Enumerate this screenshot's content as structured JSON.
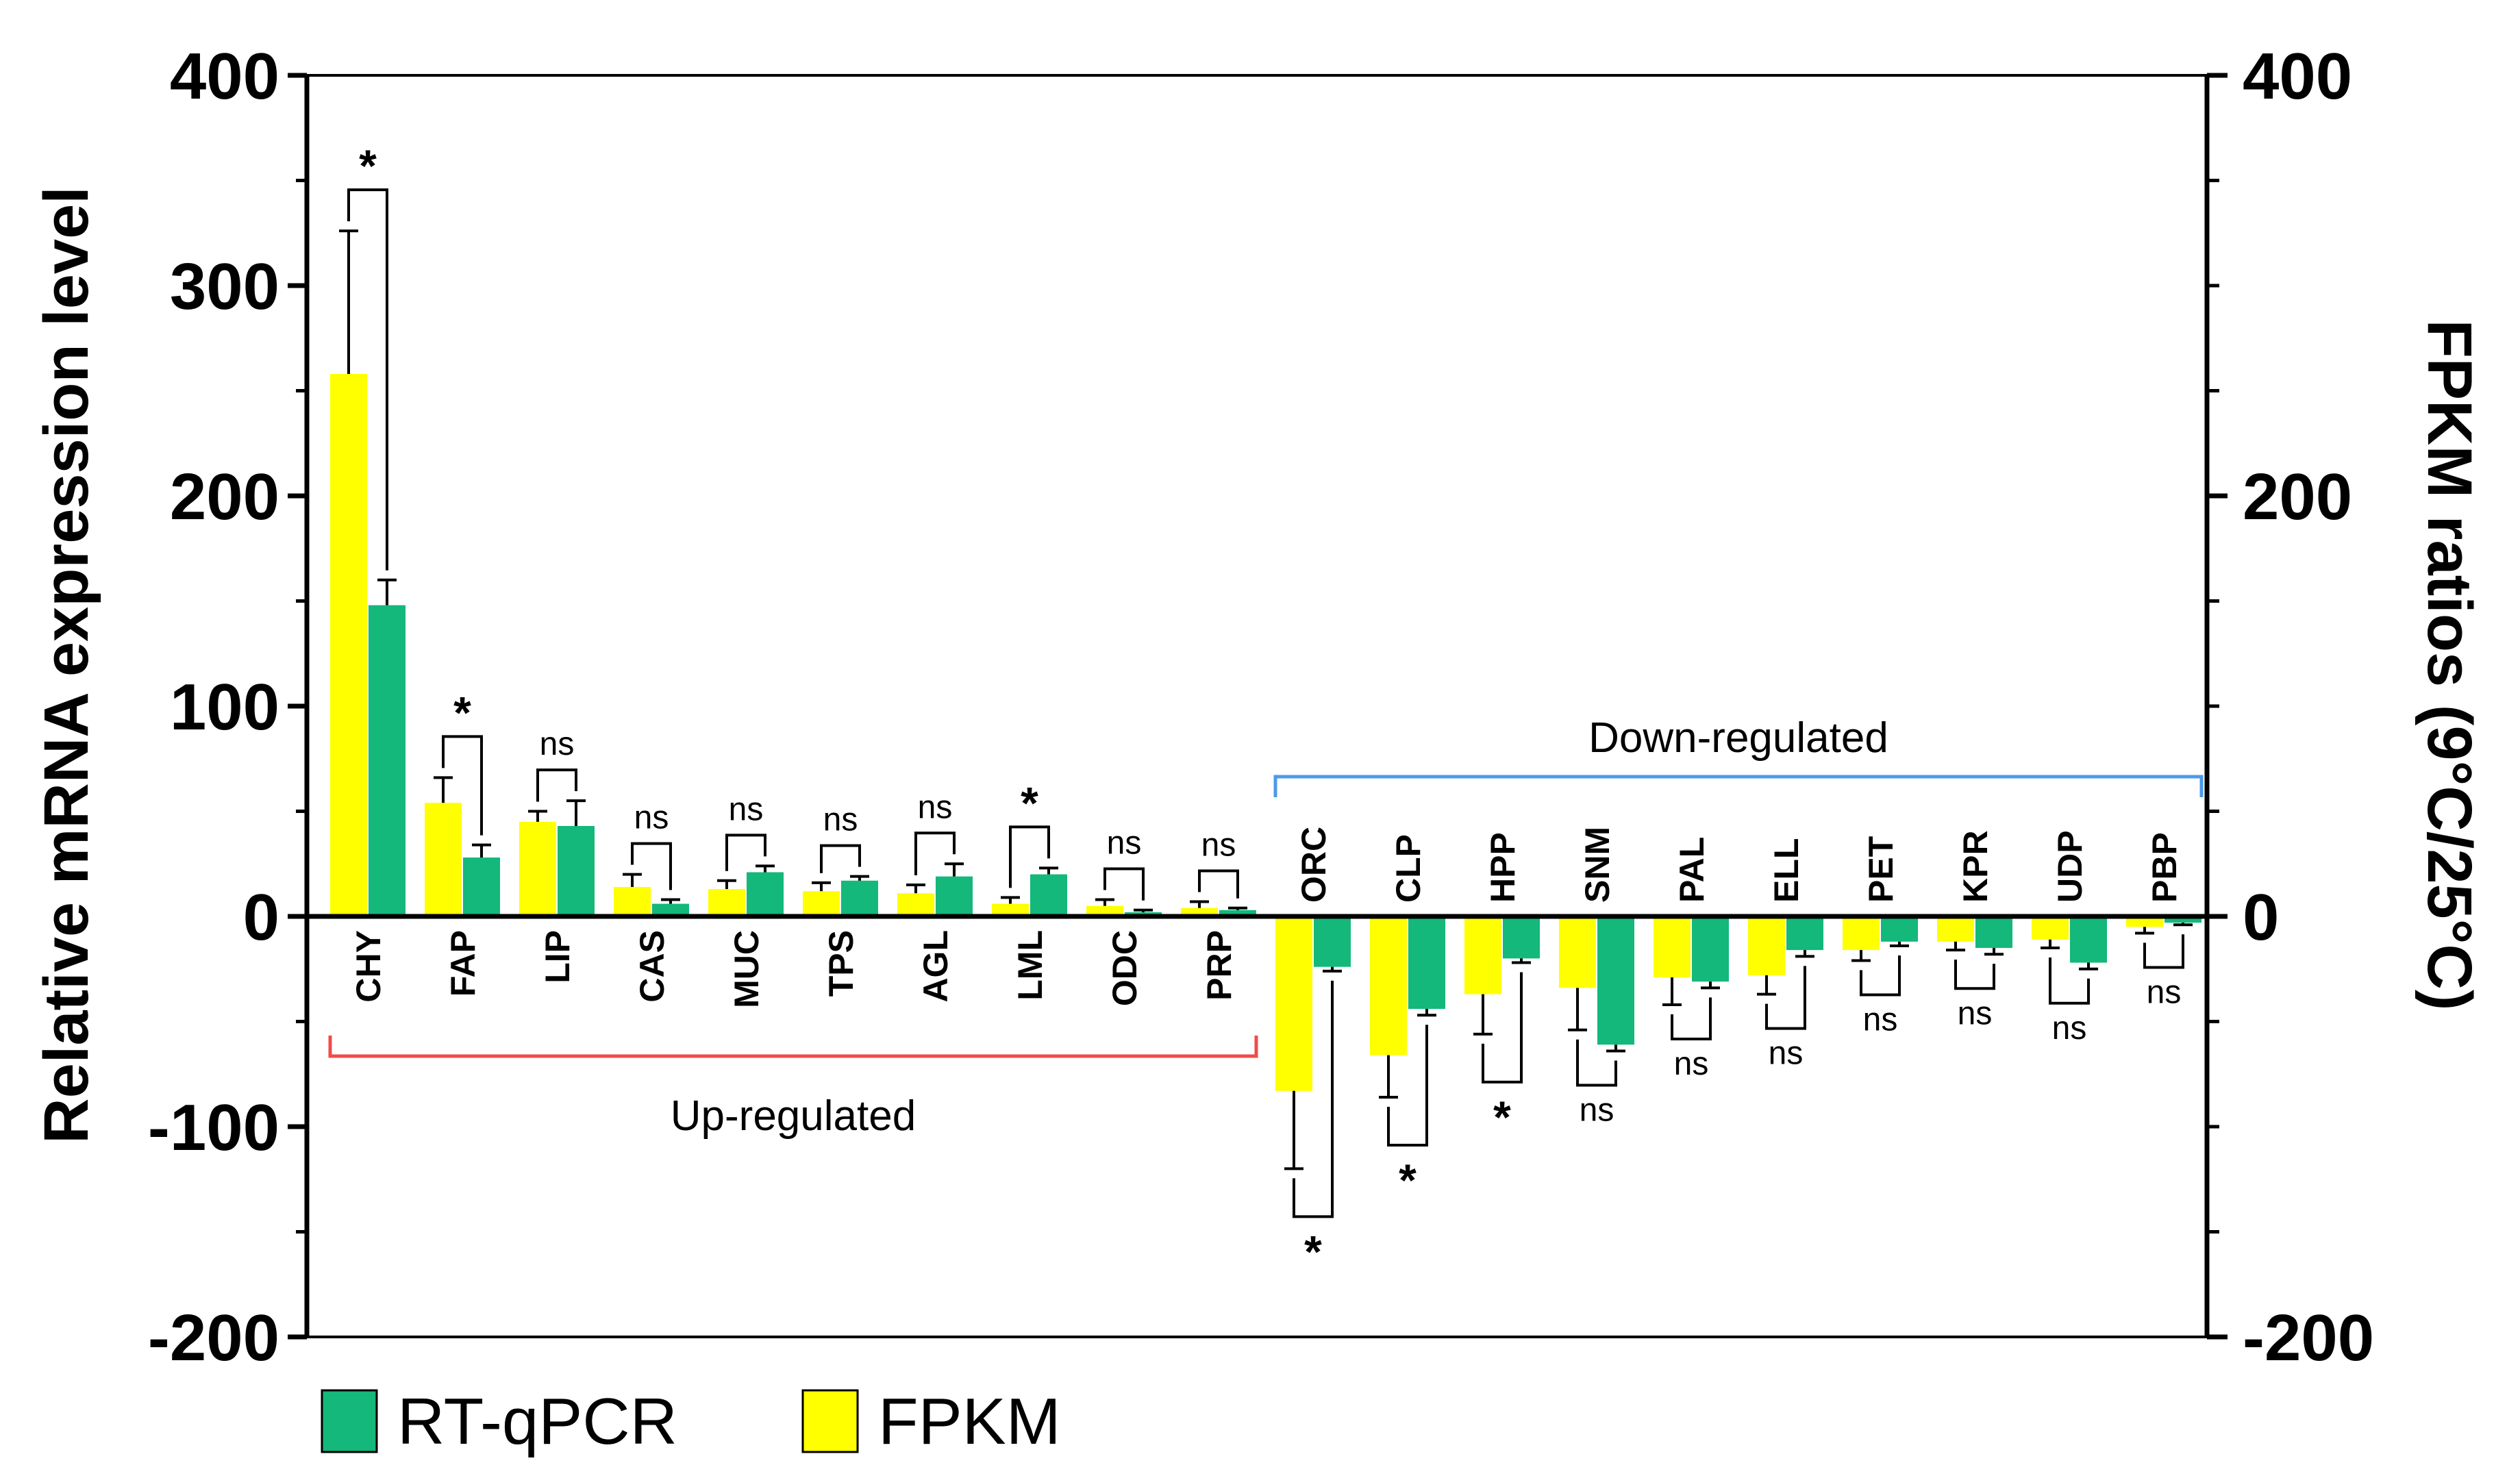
{
  "chart_data": {
    "type": "bar",
    "ylabel_left": "Relative mRNA expression level",
    "ylabel_right": "FPKM ratios (9°C/25°C)",
    "ylim_left": [
      -200,
      400
    ],
    "ylim_right": [
      -200,
      400
    ],
    "yticks_left": [
      -200,
      -100,
      0,
      100,
      200,
      300,
      400
    ],
    "yticks_right": [
      -200,
      0,
      200,
      400
    ],
    "categories": [
      "CHY",
      "FAP",
      "LIP",
      "CAS",
      "MUC",
      "TPS",
      "AGL",
      "LML",
      "ODC",
      "PRP",
      "ORC",
      "CLP",
      "HPP",
      "SNM",
      "PAL",
      "ELL",
      "PET",
      "KPR",
      "UDP",
      "PBP"
    ],
    "series": [
      {
        "name": "FPKM",
        "color": "#FFFF00",
        "values": [
          258,
          54,
          45,
          14,
          13,
          12,
          11,
          6,
          5,
          4,
          -83,
          -66,
          -37,
          -34,
          -29,
          -28,
          -16,
          -12,
          -11,
          -5
        ],
        "errors": [
          68,
          12,
          5,
          6,
          4,
          4,
          4,
          3,
          3,
          3,
          37,
          20,
          19,
          20,
          13,
          9,
          5,
          4,
          4,
          3
        ]
      },
      {
        "name": "RT-qPCR",
        "color": "#13B87A",
        "values": [
          148,
          28,
          43,
          6,
          21,
          17,
          19,
          20,
          2,
          3,
          -24,
          -44,
          -20,
          -61,
          -31,
          -16,
          -12,
          -15,
          -22,
          -3
        ],
        "errors": [
          12,
          6,
          12,
          2,
          3,
          2,
          6,
          3,
          1,
          1,
          2,
          3,
          2,
          3,
          3,
          3,
          2,
          3,
          3,
          1
        ]
      }
    ],
    "significance": [
      "*",
      "*",
      "ns",
      "ns",
      "ns",
      "ns",
      "ns",
      "*",
      "ns",
      "ns",
      "*",
      "*",
      "*",
      "ns",
      "ns",
      "ns",
      "ns",
      "ns",
      "ns",
      "ns"
    ],
    "groups": [
      {
        "label": "Up-regulated",
        "from": 0,
        "to": 9,
        "color": "#F24B4B"
      },
      {
        "label": "Down-regulated",
        "from": 10,
        "to": 19,
        "color": "#4A9BEA"
      }
    ],
    "legend": [
      {
        "label": "RT-qPCR",
        "color": "#13B87A"
      },
      {
        "label": "FPKM",
        "color": "#FFFF00"
      }
    ],
    "grid": false,
    "legend_position": "bottom-left"
  }
}
